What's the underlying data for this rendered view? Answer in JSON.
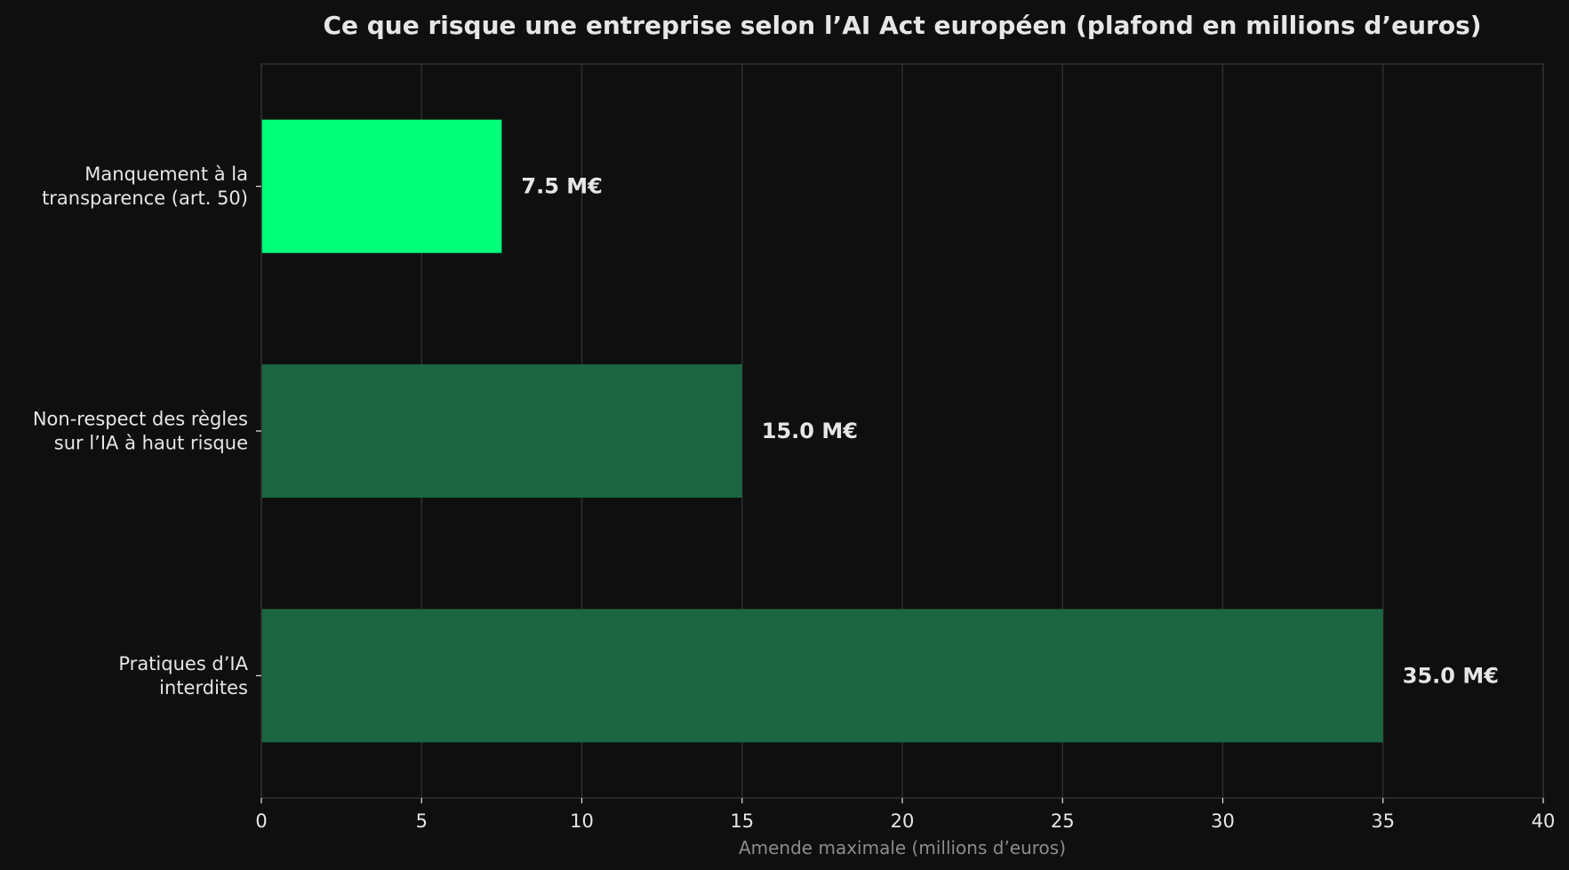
{
  "chart_data": {
    "type": "bar",
    "orientation": "horizontal",
    "title": "Ce que risque une entreprise selon l’AI Act européen (plafond en millions d’euros)",
    "xlabel": "Amende maximale (millions d’euros)",
    "ylabel": "",
    "xlim": [
      0,
      40
    ],
    "xticks": [
      0,
      5,
      10,
      15,
      20,
      25,
      30,
      35,
      40
    ],
    "grid": true,
    "categories": [
      [
        "Manquement à la",
        "transparence (art. 50)"
      ],
      [
        "Non-respect des règles",
        "sur l’IA à haut risque"
      ],
      [
        "Pratiques d’IA",
        "interdites"
      ]
    ],
    "values": [
      7.5,
      15.0,
      35.0
    ],
    "data_labels": [
      "7.5 M€",
      "15.0 M€",
      "35.0 M€"
    ],
    "colors": [
      "#00ff78",
      "#1b6641",
      "#1b6641"
    ],
    "background": "#0f0f0f"
  }
}
